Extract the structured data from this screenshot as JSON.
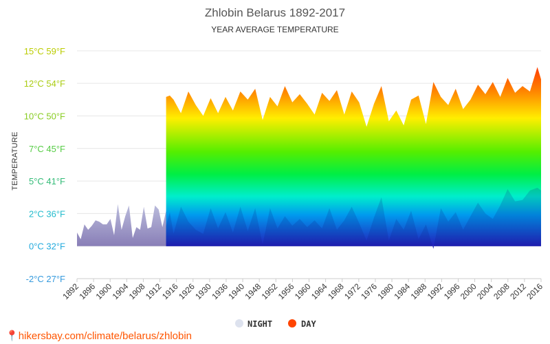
{
  "chart_data": {
    "type": "area",
    "title": "Zhlobin Belarus 1892-2017",
    "subtitle": "YEAR AVERAGE TEMPERATURE",
    "ylabel": "TEMPERATURE",
    "ylim": [
      -2.4,
      15
    ],
    "y_ticks": [
      {
        "value": -2.4,
        "label": "-2°C 27°F",
        "color": "#3399dd"
      },
      {
        "value": 0,
        "label": "0°C 32°F",
        "color": "#22aadd"
      },
      {
        "value": 2.4,
        "label": "2°C 36°F",
        "color": "#22bbcc"
      },
      {
        "value": 4.8,
        "label": "5°C 41°F",
        "color": "#33bb77"
      },
      {
        "value": 7.2,
        "label": "7°C 45°F",
        "color": "#55cc44"
      },
      {
        "value": 9.6,
        "label": "10°C 50°F",
        "color": "#88cc22"
      },
      {
        "value": 12,
        "label": "12°C 54°F",
        "color": "#aacc11"
      },
      {
        "value": 14.4,
        "label": "15°C 59°F",
        "color": "#bbcc00"
      }
    ],
    "x_ticks": [
      "1892",
      "1896",
      "1900",
      "1904",
      "1908",
      "1912",
      "1916",
      "1926",
      "1930",
      "1936",
      "1940",
      "1948",
      "1952",
      "1956",
      "1960",
      "1964",
      "1968",
      "1972",
      "1976",
      "1980",
      "1984",
      "1988",
      "1992",
      "1996",
      "2000",
      "2004",
      "2008",
      "2012",
      "2016"
    ],
    "series": [
      {
        "name": "NIGHT",
        "color": "#dde2ee",
        "x": [
          "1892",
          "1893",
          "1894",
          "1895",
          "1896",
          "1897",
          "1898",
          "1899",
          "1900",
          "1901",
          "1902",
          "1903",
          "1904",
          "1905",
          "1906",
          "1907",
          "1908",
          "1909",
          "1910",
          "1911",
          "1912",
          "1913",
          "1914",
          "1915",
          "1916",
          "1917"
        ],
        "values": [
          1.0,
          0.5,
          1.6,
          1.2,
          1.5,
          1.9,
          1.8,
          1.6,
          1.6,
          2.0,
          0.8,
          3.1,
          1.2,
          2.2,
          3.0,
          0.6,
          1.4,
          1.2,
          2.9,
          1.3,
          1.4,
          3.0,
          2.7,
          1.4,
          2.6,
          0.9
        ]
      },
      {
        "name": "DAY",
        "color": "#ff4400",
        "x": [
          "1916",
          "1917",
          "1918",
          "1920",
          "1922",
          "1924",
          "1926",
          "1928",
          "1930",
          "1932",
          "1934",
          "1936",
          "1938",
          "1940",
          "1942",
          "1944",
          "1946",
          "1948",
          "1950",
          "1952",
          "1954",
          "1956",
          "1958",
          "1960",
          "1962",
          "1964",
          "1966",
          "1968",
          "1970",
          "1972",
          "1974",
          "1976",
          "1978",
          "1980",
          "1982",
          "1984",
          "1986",
          "1988",
          "1990",
          "1992",
          "1994",
          "1996",
          "1998",
          "2000",
          "2002",
          "2004",
          "2006",
          "2008",
          "2010",
          "2012",
          "2014",
          "2016",
          "2017"
        ],
        "values": [
          11.0,
          11.1,
          10.8,
          9.8,
          11.4,
          10.4,
          9.6,
          10.9,
          9.8,
          11.0,
          10.0,
          11.4,
          10.8,
          11.6,
          9.3,
          11.0,
          10.3,
          11.8,
          10.6,
          11.2,
          10.5,
          9.7,
          11.3,
          10.7,
          11.5,
          9.7,
          11.4,
          10.6,
          8.8,
          10.5,
          11.8,
          9.2,
          10.0,
          8.9,
          10.8,
          11.1,
          9.0,
          12.1,
          11.0,
          10.4,
          11.6,
          10.1,
          10.8,
          11.9,
          11.2,
          12.1,
          11.0,
          12.4,
          11.3,
          11.8,
          11.4,
          13.2,
          12.3
        ]
      },
      {
        "name": "NIGHT",
        "color": "gradient",
        "x": [
          "1916",
          "1917",
          "1918",
          "1920",
          "1922",
          "1924",
          "1926",
          "1928",
          "1930",
          "1932",
          "1934",
          "1936",
          "1938",
          "1940",
          "1942",
          "1944",
          "1946",
          "1948",
          "1950",
          "1952",
          "1954",
          "1956",
          "1958",
          "1960",
          "1962",
          "1964",
          "1966",
          "1968",
          "1970",
          "1972",
          "1974",
          "1976",
          "1978",
          "1980",
          "1982",
          "1984",
          "1986",
          "1988",
          "1990",
          "1992",
          "1994",
          "1996",
          "1998",
          "2000",
          "2002",
          "2004",
          "2006",
          "2008",
          "2010",
          "2012",
          "2014",
          "2016",
          "2017"
        ],
        "values": [
          1.5,
          2.5,
          0.9,
          2.9,
          1.8,
          1.2,
          0.9,
          2.8,
          1.3,
          2.5,
          1.0,
          2.9,
          1.1,
          2.8,
          0.1,
          2.8,
          1.3,
          2.2,
          1.5,
          2.0,
          1.4,
          1.9,
          1.3,
          2.8,
          1.2,
          1.9,
          2.9,
          1.7,
          0.4,
          2.1,
          3.6,
          0.4,
          2.0,
          1.2,
          2.6,
          0.5,
          1.6,
          -0.2,
          2.8,
          1.8,
          2.5,
          1.2,
          2.2,
          3.2,
          2.4,
          2.0,
          3.0,
          4.2,
          3.3,
          3.4,
          4.1,
          4.3,
          4.1
        ]
      }
    ],
    "legend": [
      {
        "name": "NIGHT",
        "color": "#dde2ee"
      },
      {
        "name": "DAY",
        "color": "#ff4400"
      }
    ],
    "legend_position": "bottom",
    "grid": true
  },
  "source_text": "hikersbay.com/climate/belarus/zhlobin"
}
